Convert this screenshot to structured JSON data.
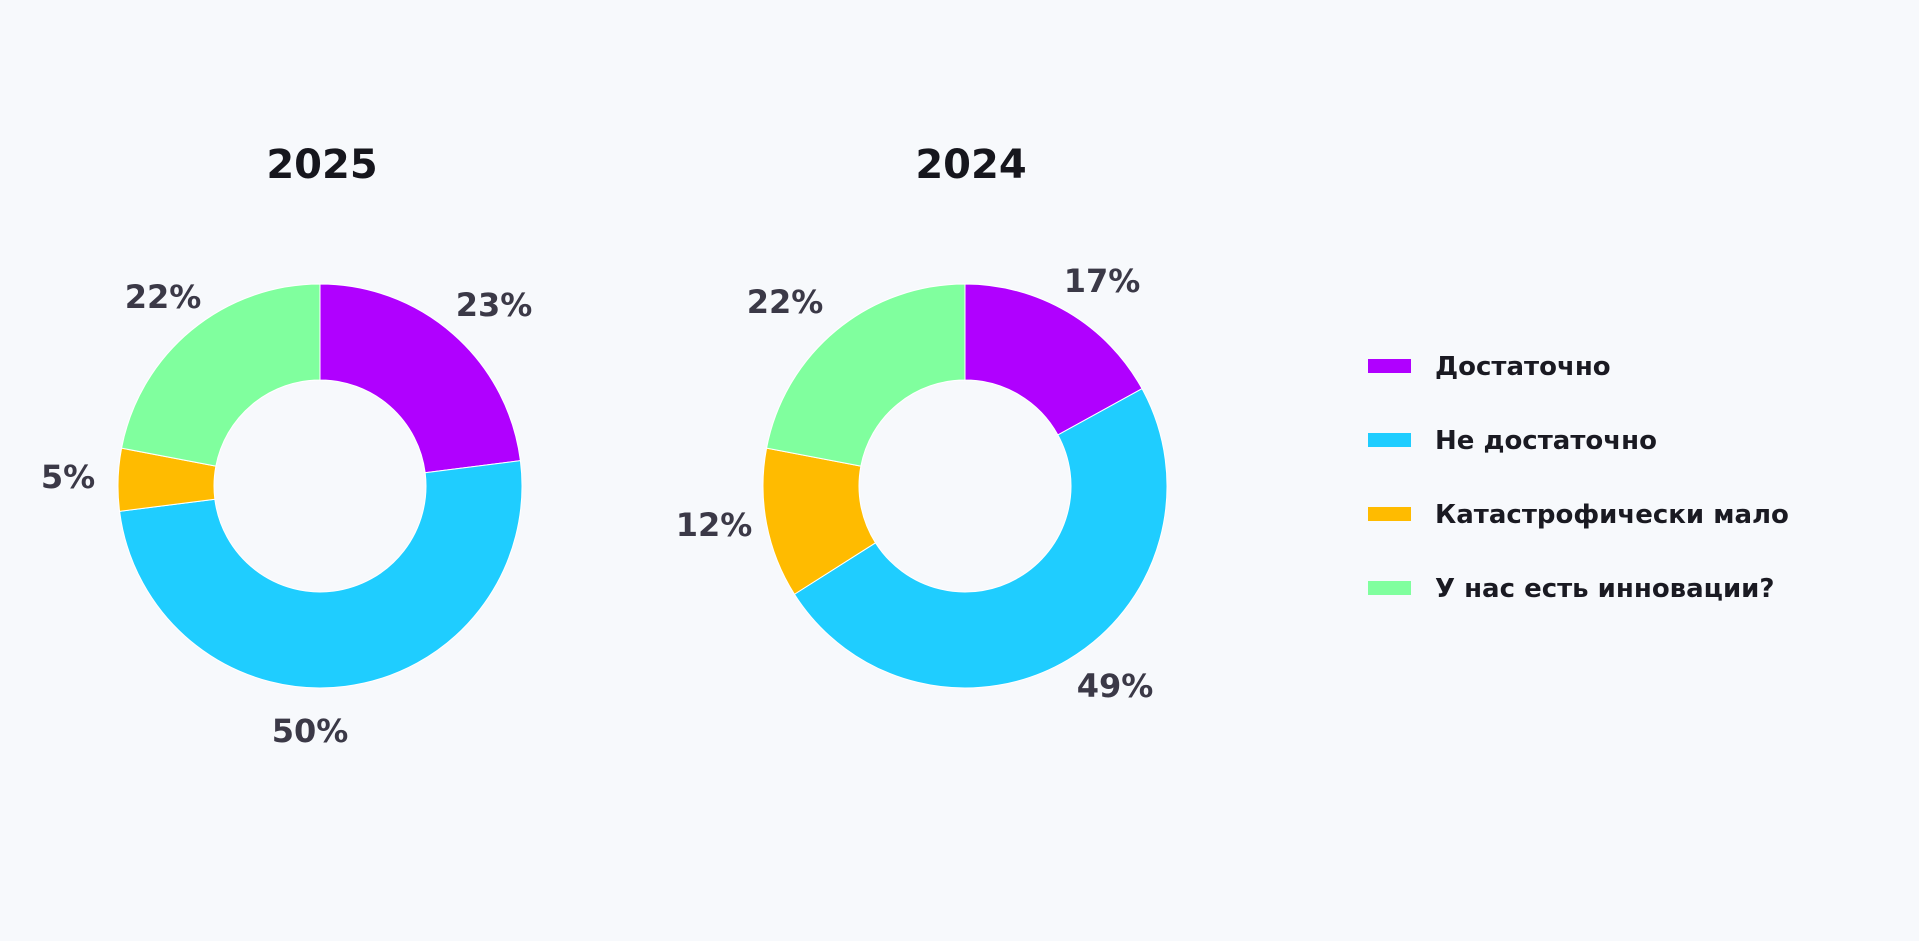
{
  "legend": [
    "Достаточно",
    "Не достаточно",
    "Катастрофически мало",
    "У нас есть инновации?"
  ],
  "colors": [
    "#b000ff",
    "#1fcdff",
    "#ffbb00",
    "#80ff9e"
  ],
  "chart_data": [
    {
      "type": "pie",
      "variant": "donut",
      "title": "2025",
      "categories": [
        "Достаточно",
        "Не достаточно",
        "Катастрофически мало",
        "У нас есть инновации?"
      ],
      "values": [
        23,
        50,
        5,
        22
      ],
      "labels": [
        "23%",
        "50%",
        "5%",
        "22%"
      ]
    },
    {
      "type": "pie",
      "variant": "donut",
      "title": "2024",
      "categories": [
        "Достаточно",
        "Не достаточно",
        "Катастрофически мало",
        "У нас есть инновации?"
      ],
      "values": [
        17,
        49,
        12,
        22
      ],
      "labels": [
        "17%",
        "49%",
        "12%",
        "22%"
      ]
    }
  ]
}
